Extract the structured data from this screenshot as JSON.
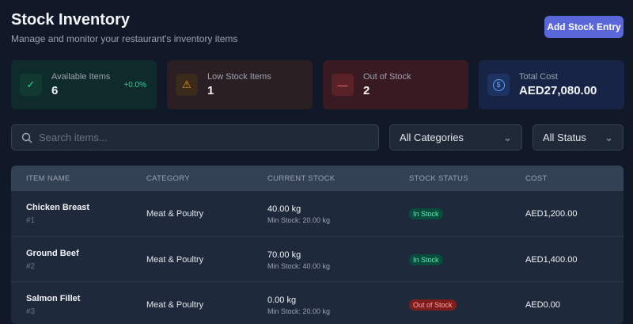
{
  "header": {
    "title": "Stock Inventory",
    "subtitle": "Manage and monitor your restaurant's inventory items",
    "add_button": "Add Stock Entry"
  },
  "cards": [
    {
      "label": "Available Items",
      "value": "6",
      "change": "+0.0%",
      "icon": "check-icon",
      "bg": "#0f2a2a",
      "icon_bg": "#12392f",
      "icon_color": "#34d399"
    },
    {
      "label": "Low Stock Items",
      "value": "1",
      "icon": "warning-icon",
      "bg": "#2a2023",
      "icon_bg": "#3a2a1c",
      "icon_color": "#f59e0b"
    },
    {
      "label": "Out of Stock",
      "value": "2",
      "icon": "minus-icon",
      "bg": "#3a1a22",
      "icon_bg": "#5a2226",
      "icon_color": "#f87171"
    },
    {
      "label": "Total Cost",
      "value": "AED27,080.00",
      "icon": "dollar-icon",
      "bg": "#172445",
      "icon_bg": "#1e3262",
      "icon_color": "#60a5fa"
    }
  ],
  "filters": {
    "search_placeholder": "Search items...",
    "category": "All Categories",
    "status": "All Status"
  },
  "table": {
    "columns": [
      "ITEM NAME",
      "CATEGORY",
      "CURRENT STOCK",
      "STOCK STATUS",
      "COST"
    ],
    "rows": [
      {
        "name": "Chicken Breast",
        "id": "#1",
        "category": "Meat & Poultry",
        "stock": "40.00 kg",
        "min": "Min Stock: 20.00 kg",
        "status": "In Stock",
        "cost": "AED1,200.00"
      },
      {
        "name": "Ground Beef",
        "id": "#2",
        "category": "Meat & Poultry",
        "stock": "70.00 kg",
        "min": "Min Stock: 40.00 kg",
        "status": "In Stock",
        "cost": "AED1,400.00"
      },
      {
        "name": "Salmon Fillet",
        "id": "#3",
        "category": "Meat & Poultry",
        "stock": "0.00 kg",
        "min": "Min Stock: 20.00 kg",
        "status": "Out of Stock",
        "cost": "AED0.00"
      }
    ]
  },
  "status_colors": {
    "In Stock": {
      "bg": "#064e3b",
      "fg": "#6ee7b7"
    },
    "Out of Stock": {
      "bg": "#7f1d1d",
      "fg": "#fca5a5"
    }
  }
}
